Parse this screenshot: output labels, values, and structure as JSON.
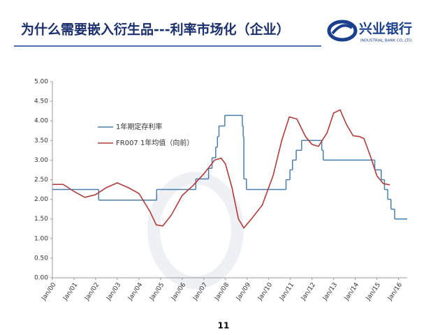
{
  "header": {
    "title": "为什么需要嵌入衍生品---利率市场化（企业）",
    "logo_name": "兴业银行",
    "logo_subtitle": "INDUSTRIAL BANK CO.,LTD."
  },
  "page_number": "11",
  "chart_data": {
    "type": "line",
    "legend": "upper-left",
    "xlim": [
      2000,
      2016.4
    ],
    "ylim": [
      0,
      5
    ],
    "yticks": [
      {
        "value": 0,
        "label": "0.00"
      },
      {
        "value": 0.5,
        "label": "0.50"
      },
      {
        "value": 1,
        "label": "1.00"
      },
      {
        "value": 1.5,
        "label": "1.50"
      },
      {
        "value": 2,
        "label": "2.00"
      },
      {
        "value": 2.5,
        "label": "2.50"
      },
      {
        "value": 3,
        "label": "3.00"
      },
      {
        "value": 3.5,
        "label": "3.50"
      },
      {
        "value": 4,
        "label": "4.00"
      },
      {
        "value": 4.5,
        "label": "4.50"
      },
      {
        "value": 5,
        "label": "5.00"
      }
    ],
    "xticks": [
      {
        "value": 2000,
        "label": "Jan/00"
      },
      {
        "value": 2001,
        "label": "Jan/01"
      },
      {
        "value": 2002,
        "label": "Jan/02"
      },
      {
        "value": 2003,
        "label": "Jan/03"
      },
      {
        "value": 2004,
        "label": "Jan/04"
      },
      {
        "value": 2005,
        "label": "Jan/05"
      },
      {
        "value": 2006,
        "label": "Jan/06"
      },
      {
        "value": 2007,
        "label": "Jan/07"
      },
      {
        "value": 2008,
        "label": "Jan/08"
      },
      {
        "value": 2009,
        "label": "Jan/09"
      },
      {
        "value": 2010,
        "label": "Jan/10"
      },
      {
        "value": 2011,
        "label": "Jan/11"
      },
      {
        "value": 2012,
        "label": "Jan/12"
      },
      {
        "value": 2013,
        "label": "Jan/13"
      },
      {
        "value": 2014,
        "label": "Jan/14"
      },
      {
        "value": 2015,
        "label": "Jan/15"
      },
      {
        "value": 2016,
        "label": "Jan/16"
      }
    ],
    "grid": false,
    "series": [
      {
        "name": "1年期定存利率",
        "color": "#4a7ea8",
        "step": true,
        "x": [
          2000.0,
          2002.14,
          2004.82,
          2006.63,
          2007.22,
          2007.38,
          2007.55,
          2007.63,
          2007.7,
          2007.97,
          2008.78,
          2008.82,
          2008.85,
          2008.97,
          2010.8,
          2010.98,
          2011.1,
          2011.27,
          2011.52,
          2012.45,
          2012.52,
          2014.9,
          2015.2,
          2015.35,
          2015.5,
          2015.65,
          2015.82
        ],
        "values": [
          2.25,
          1.98,
          2.25,
          2.52,
          2.79,
          3.06,
          3.33,
          3.6,
          3.87,
          4.14,
          3.87,
          3.6,
          2.52,
          2.25,
          2.5,
          2.75,
          3.0,
          3.25,
          3.5,
          3.25,
          3.0,
          2.75,
          2.5,
          2.25,
          2.0,
          1.75,
          1.5
        ]
      },
      {
        "name": "FR007 1年均值（向前）",
        "color": "#b03a3a",
        "step": false,
        "x": [
          2000.0,
          2000.5,
          2001.0,
          2001.5,
          2002.0,
          2002.5,
          2003.0,
          2003.5,
          2004.0,
          2004.5,
          2004.8,
          2005.1,
          2005.5,
          2006.0,
          2006.5,
          2007.0,
          2007.5,
          2007.8,
          2008.0,
          2008.3,
          2008.6,
          2008.85,
          2009.2,
          2009.7,
          2010.2,
          2010.6,
          2010.95,
          2011.3,
          2011.7,
          2012.0,
          2012.3,
          2012.7,
          2013.0,
          2013.3,
          2013.6,
          2013.9,
          2014.2,
          2014.4,
          2014.7,
          2015.0,
          2015.3,
          2015.6
        ],
        "values": [
          2.38,
          2.38,
          2.2,
          2.05,
          2.12,
          2.3,
          2.42,
          2.3,
          2.15,
          1.7,
          1.35,
          1.32,
          1.6,
          2.1,
          2.35,
          2.65,
          3.0,
          3.05,
          2.9,
          2.3,
          1.5,
          1.27,
          1.5,
          1.85,
          2.6,
          3.5,
          4.1,
          4.05,
          3.6,
          3.4,
          3.35,
          3.7,
          4.2,
          4.28,
          3.9,
          3.62,
          3.6,
          3.55,
          3.1,
          2.6,
          2.4,
          2.37
        ]
      }
    ]
  }
}
